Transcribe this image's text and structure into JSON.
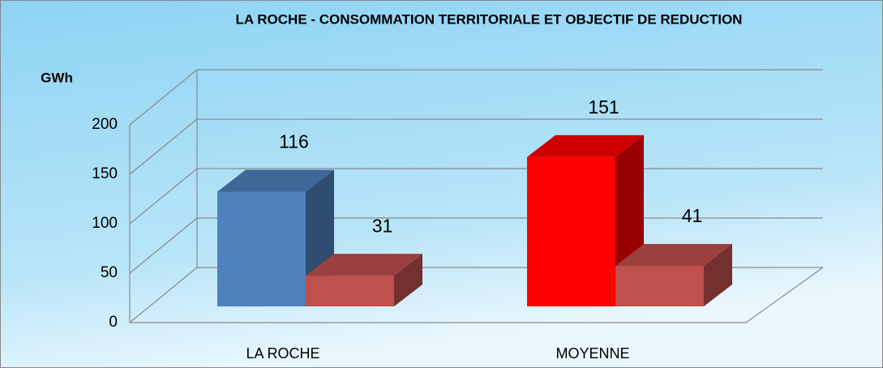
{
  "chart_data": {
    "type": "bar3d",
    "title": "LA ROCHE  - CONSOMMATION TERRITORIALE ET OBJECTIF DE REDUCTION",
    "ylabel": "GWh",
    "categories": [
      "LA ROCHE",
      "MOYENNE"
    ],
    "series": [
      {
        "colors": [
          "#4f81bd",
          "#ff0000"
        ],
        "values": [
          116,
          151
        ]
      },
      {
        "color": "#c0504d",
        "values": [
          31,
          41
        ]
      }
    ],
    "ylim": [
      0,
      200
    ],
    "yticks": [
      0,
      50,
      100,
      150,
      200
    ],
    "grid": true
  }
}
